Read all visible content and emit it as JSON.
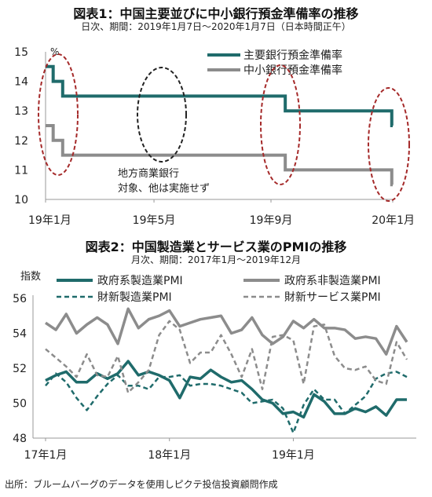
{
  "chart_data": [
    {
      "type": "line",
      "title": "図表1：中国主要並びに中小銀行預金準備率の推移",
      "subtitle": "日次、期間：2019年1月7日～2020年1月7日（日本時間正午）",
      "ylabel_unit": "%",
      "ylim": [
        10,
        15
      ],
      "yticks": [
        "10",
        "11",
        "12",
        "13",
        "14",
        "15"
      ],
      "x_ticks": [
        "19年1月",
        "19年5月",
        "19年9月",
        "20年1月"
      ],
      "annotation": "地方商業銀行\n対象、他は実施せず",
      "series": [
        {
          "name": "主要銀行預金準備率",
          "color": "#1f6b6b",
          "steps": [
            {
              "date": "2019-01-07",
              "value": 14.5
            },
            {
              "date": "2019-01-15",
              "value": 14.0
            },
            {
              "date": "2019-01-25",
              "value": 13.5
            },
            {
              "date": "2019-09-16",
              "value": 13.0
            },
            {
              "date": "2020-01-06",
              "value": 12.5
            },
            {
              "date": "2020-01-07",
              "value": 12.5
            }
          ]
        },
        {
          "name": "中小銀行預金準備率",
          "color": "#8c8c8c",
          "steps": [
            {
              "date": "2019-01-07",
              "value": 12.5
            },
            {
              "date": "2019-01-15",
              "value": 12.0
            },
            {
              "date": "2019-01-25",
              "value": 11.5
            },
            {
              "date": "2019-09-16",
              "value": 11.0
            },
            {
              "date": "2020-01-06",
              "value": 10.5
            },
            {
              "date": "2020-01-07",
              "value": 10.5
            }
          ]
        }
      ]
    },
    {
      "type": "line",
      "title": "図表2：中国製造業とサービス業のPMIの推移",
      "subtitle": "月次、期間：2017年1月～2019年12月",
      "ylabel": "指数",
      "ylim": [
        48,
        56
      ],
      "yticks": [
        "48",
        "50",
        "52",
        "54",
        "56"
      ],
      "x_ticks": [
        "17年1月",
        "18年1月",
        "19年1月"
      ],
      "months": 36,
      "series": [
        {
          "name": "政府系製造業PMI",
          "color": "#1f6b6b",
          "style": "solid",
          "values": [
            51.3,
            51.6,
            51.8,
            51.2,
            51.2,
            51.7,
            51.4,
            51.7,
            52.4,
            51.6,
            51.8,
            51.6,
            51.3,
            50.3,
            51.5,
            51.4,
            51.9,
            51.5,
            51.2,
            51.3,
            50.8,
            50.2,
            50.0,
            49.4,
            49.5,
            49.2,
            50.5,
            50.1,
            49.4,
            49.4,
            49.7,
            49.5,
            49.8,
            49.3,
            50.2,
            50.2
          ]
        },
        {
          "name": "政府系非製造業PMI",
          "color": "#8c8c8c",
          "style": "solid",
          "values": [
            54.6,
            54.2,
            55.1,
            54.0,
            54.5,
            54.9,
            54.5,
            53.4,
            55.4,
            54.3,
            54.8,
            55.0,
            55.3,
            54.4,
            54.6,
            54.8,
            54.9,
            55.0,
            54.0,
            54.2,
            54.9,
            53.9,
            53.4,
            53.8,
            54.7,
            54.3,
            54.8,
            54.3,
            54.3,
            54.2,
            53.7,
            53.8,
            53.7,
            52.8,
            54.4,
            53.5
          ]
        },
        {
          "name": "財新製造業PMI",
          "color": "#1f6b6b",
          "style": "dashed",
          "values": [
            51.0,
            51.7,
            51.2,
            50.3,
            49.6,
            50.4,
            51.1,
            51.6,
            51.0,
            51.0,
            50.8,
            51.5,
            51.5,
            51.6,
            51.0,
            51.1,
            51.1,
            51.0,
            50.8,
            50.6,
            50.0,
            50.1,
            50.2,
            49.7,
            48.3,
            49.9,
            50.8,
            50.2,
            50.2,
            49.4,
            49.9,
            50.4,
            51.4,
            51.7,
            51.8,
            51.5
          ]
        },
        {
          "name": "財新サービス業PMI",
          "color": "#8c8c8c",
          "style": "dashed",
          "values": [
            53.1,
            52.6,
            52.1,
            51.5,
            52.8,
            51.6,
            51.5,
            52.7,
            50.6,
            51.2,
            51.9,
            53.9,
            54.7,
            54.2,
            52.3,
            52.9,
            52.9,
            53.9,
            52.8,
            51.5,
            53.1,
            50.8,
            53.8,
            53.9,
            53.6,
            51.1,
            54.4,
            54.5,
            52.7,
            52.0,
            51.9,
            52.1,
            51.3,
            51.1,
            53.5,
            52.5
          ]
        }
      ]
    }
  ],
  "source_note": "出所：ブルームバーグのデータを使用しピクテ投信投資顧問作成"
}
